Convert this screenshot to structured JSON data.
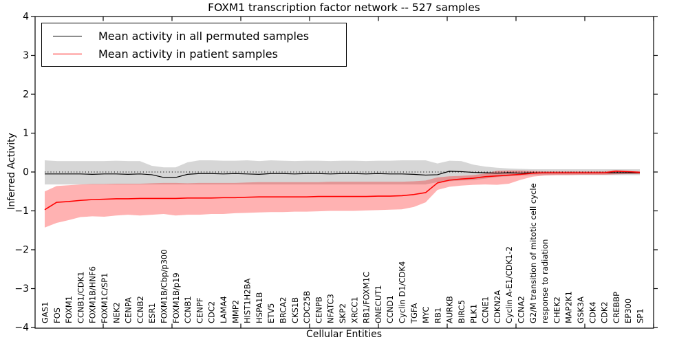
{
  "figure": {
    "background": "#ffffff"
  },
  "legend": {
    "entries": [
      {
        "label": "Mean activity in all permuted samples",
        "color": "#000000"
      },
      {
        "label": "Mean activity in patient samples",
        "color": "#ff0000"
      }
    ]
  },
  "chart_data": {
    "type": "line",
    "title": "FOXM1 transcription factor network -- 527 samples",
    "xlabel": "Cellular Entities",
    "ylabel": "Inferred Activity",
    "ylim": [
      -4,
      4
    ],
    "yticks": [
      -4,
      -3,
      -2,
      -1,
      0,
      1,
      2,
      3,
      4
    ],
    "grid": false,
    "legend_position": "upper-left",
    "zero_line": {
      "y": 0,
      "style": "dotted",
      "color": "#000000"
    },
    "categories": [
      "GAS1",
      "FOS",
      "FOXM1",
      "CCNB1/CDK1",
      "FOXM1B/HNF6",
      "FOXM1C/SP1",
      "NEK2",
      "CENPA",
      "CCNB2",
      "ESR1",
      "FOXM1B/Cbp/p300",
      "FOXM1B/p19",
      "CCNB1",
      "CENPF",
      "CDC2",
      "LAMA4",
      "MMP2",
      "HIST1H2BA",
      "HSPA1B",
      "ETV5",
      "BRCA2",
      "CKS1B",
      "CDC25B",
      "CENPB",
      "NFATC3",
      "SKP2",
      "XRCC1",
      "RB1/FOXM1C",
      "ONECUT1",
      "CCND1",
      "Cyclin D1/CDK4",
      "TGFA",
      "MYC",
      "RB1",
      "AURKB",
      "BIRC5",
      "PLK1",
      "CCNE1",
      "CDKN2A",
      "Cyclin A-E1/CDK1-2",
      "CCNA2",
      "G2/M transition of mitotic cell cycle",
      "response to radiation",
      "CHEK2",
      "MAP2K1",
      "GSK3A",
      "CDK4",
      "CDK2",
      "CREBBP",
      "EP300",
      "SP1"
    ],
    "series": [
      {
        "name": "Mean activity in all permuted samples",
        "color": "#000000",
        "line_width": 1.2,
        "values": [
          -0.05,
          -0.05,
          -0.05,
          -0.05,
          -0.06,
          -0.05,
          -0.05,
          -0.06,
          -0.05,
          -0.07,
          -0.14,
          -0.14,
          -0.06,
          -0.04,
          -0.04,
          -0.05,
          -0.04,
          -0.05,
          -0.06,
          -0.04,
          -0.04,
          -0.05,
          -0.04,
          -0.04,
          -0.05,
          -0.04,
          -0.04,
          -0.05,
          -0.04,
          -0.05,
          -0.05,
          -0.06,
          -0.08,
          -0.07,
          0.02,
          0.01,
          -0.01,
          -0.02,
          -0.03,
          -0.02,
          -0.03,
          -0.02,
          -0.02,
          -0.02,
          -0.02,
          -0.02,
          -0.02,
          -0.02,
          -0.02,
          -0.02,
          -0.02
        ],
        "band": {
          "color": "rgba(0,0,0,0.16)",
          "upper": [
            0.3,
            0.28,
            0.28,
            0.28,
            0.28,
            0.28,
            0.29,
            0.28,
            0.28,
            0.16,
            0.12,
            0.12,
            0.25,
            0.3,
            0.3,
            0.29,
            0.29,
            0.3,
            0.28,
            0.3,
            0.29,
            0.28,
            0.29,
            0.29,
            0.28,
            0.29,
            0.29,
            0.28,
            0.29,
            0.29,
            0.3,
            0.3,
            0.3,
            0.22,
            0.29,
            0.28,
            0.19,
            0.14,
            0.11,
            0.09,
            0.08,
            0.07,
            0.07,
            0.07,
            0.07,
            0.07,
            0.07,
            0.07,
            0.07,
            0.07,
            0.07
          ],
          "lower": [
            -0.32,
            -0.32,
            -0.32,
            -0.32,
            -0.32,
            -0.32,
            -0.32,
            -0.32,
            -0.32,
            -0.32,
            -0.32,
            -0.32,
            -0.32,
            -0.32,
            -0.32,
            -0.32,
            -0.32,
            -0.32,
            -0.32,
            -0.32,
            -0.32,
            -0.32,
            -0.32,
            -0.32,
            -0.32,
            -0.32,
            -0.32,
            -0.32,
            -0.32,
            -0.32,
            -0.32,
            -0.32,
            -0.32,
            -0.26,
            -0.24,
            -0.22,
            -0.21,
            -0.17,
            -0.13,
            -0.11,
            -0.09,
            -0.08,
            -0.08,
            -0.08,
            -0.08,
            -0.08,
            -0.08,
            -0.08,
            -0.08,
            -0.08,
            -0.08
          ]
        }
      },
      {
        "name": "Mean activity in patient samples",
        "color": "#ff0000",
        "line_width": 1.6,
        "values": [
          -0.97,
          -0.78,
          -0.76,
          -0.73,
          -0.71,
          -0.7,
          -0.69,
          -0.69,
          -0.68,
          -0.68,
          -0.68,
          -0.68,
          -0.67,
          -0.67,
          -0.67,
          -0.66,
          -0.66,
          -0.65,
          -0.64,
          -0.64,
          -0.64,
          -0.64,
          -0.64,
          -0.63,
          -0.63,
          -0.63,
          -0.63,
          -0.63,
          -0.62,
          -0.62,
          -0.61,
          -0.58,
          -0.53,
          -0.28,
          -0.21,
          -0.18,
          -0.16,
          -0.12,
          -0.1,
          -0.08,
          -0.06,
          -0.03,
          -0.02,
          -0.02,
          -0.02,
          -0.02,
          -0.02,
          -0.02,
          0.02,
          0.01,
          -0.01
        ],
        "band": {
          "color": "rgba(255,0,0,0.30)",
          "upper": [
            -0.5,
            -0.36,
            -0.34,
            -0.32,
            -0.31,
            -0.31,
            -0.3,
            -0.3,
            -0.3,
            -0.29,
            -0.28,
            -0.28,
            -0.29,
            -0.28,
            -0.28,
            -0.28,
            -0.28,
            -0.27,
            -0.26,
            -0.26,
            -0.26,
            -0.26,
            -0.26,
            -0.26,
            -0.25,
            -0.25,
            -0.25,
            -0.25,
            -0.25,
            -0.25,
            -0.25,
            -0.24,
            -0.22,
            -0.14,
            -0.11,
            -0.1,
            -0.08,
            -0.04,
            0.03,
            0.04,
            0.04,
            0.03,
            0.02,
            0.02,
            0.02,
            0.02,
            0.02,
            0.02,
            0.05,
            0.03,
            0.02
          ],
          "lower": [
            -1.43,
            -1.31,
            -1.24,
            -1.16,
            -1.14,
            -1.15,
            -1.12,
            -1.1,
            -1.12,
            -1.1,
            -1.08,
            -1.12,
            -1.1,
            -1.1,
            -1.08,
            -1.08,
            -1.06,
            -1.05,
            -1.04,
            -1.03,
            -1.03,
            -1.02,
            -1.02,
            -1.01,
            -1.0,
            -1.0,
            -1.0,
            -0.99,
            -0.98,
            -0.97,
            -0.96,
            -0.9,
            -0.78,
            -0.46,
            -0.38,
            -0.35,
            -0.33,
            -0.32,
            -0.33,
            -0.3,
            -0.2,
            -0.12,
            -0.09,
            -0.08,
            -0.08,
            -0.07,
            -0.07,
            -0.07,
            -0.06,
            -0.05,
            -0.05
          ]
        }
      }
    ]
  }
}
